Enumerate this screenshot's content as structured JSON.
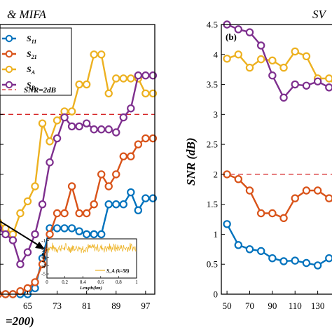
{
  "colors": {
    "s11": "#0072BD",
    "s21": "#D95319",
    "sA": "#EDB120",
    "sB": "#7E2F8E",
    "threshold": "#D62728",
    "axis": "#000000"
  },
  "chart_data": [
    {
      "type": "line",
      "panel": "left",
      "title": "& MIFA",
      "xlabel": "=200)",
      "ylabel": "",
      "x_ticks": [
        "65",
        "73",
        "81",
        "89",
        "97"
      ],
      "x": [
        57,
        59,
        61,
        63,
        65,
        67,
        69,
        71,
        73,
        75,
        77,
        79,
        81,
        83,
        85,
        87,
        89,
        91,
        93,
        95,
        97,
        99
      ],
      "xlim": [
        57.5,
        99.5
      ],
      "ylim": [
        0,
        4.5
      ],
      "grid": false,
      "legend_position": "top-left",
      "series": [
        {
          "name": "S11",
          "label_main": "S",
          "label_sub": "11",
          "color_key": "s11",
          "values": [
            0.0,
            0.0,
            0.0,
            0.0,
            0.0,
            0.1,
            0.6,
            1.1,
            1.1,
            1.1,
            1.1,
            1.05,
            1.0,
            1.0,
            1.0,
            1.5,
            1.5,
            1.5,
            1.7,
            1.4,
            1.6,
            1.6
          ]
        },
        {
          "name": "S21",
          "label_main": "S",
          "label_sub": "21",
          "color_key": "s21",
          "values": [
            0.0,
            0.0,
            0.0,
            0.05,
            0.1,
            0.2,
            0.5,
            1.0,
            1.35,
            1.35,
            1.8,
            1.35,
            1.35,
            1.5,
            2.0,
            1.8,
            2.0,
            2.3,
            2.3,
            2.5,
            2.6,
            2.6
          ]
        },
        {
          "name": "SA",
          "label_main": "S",
          "label_sub": "A",
          "color_key": "sA",
          "values": [
            1.2,
            1.1,
            1.0,
            1.35,
            1.55,
            1.8,
            2.85,
            2.55,
            2.9,
            3.05,
            3.05,
            3.5,
            3.5,
            4.0,
            4.0,
            3.35,
            3.6,
            3.6,
            3.6,
            3.6,
            3.35,
            3.35
          ]
        },
        {
          "name": "SB",
          "label_main": "S",
          "label_sub": "B",
          "color_key": "sB",
          "values": [
            1.1,
            1.0,
            0.9,
            0.5,
            0.7,
            1.0,
            1.5,
            2.2,
            2.6,
            2.95,
            2.8,
            2.8,
            2.85,
            2.75,
            2.75,
            2.75,
            2.7,
            2.95,
            3.1,
            3.65,
            3.65,
            3.65
          ]
        }
      ],
      "reference_line": {
        "y": 3.0,
        "label": "SNR=2dB",
        "color_key": "threshold"
      },
      "inset": {
        "ylabel": "S_A (dB)",
        "xlabel": "Length(km)",
        "y_ticks": [
          "-1",
          "-2",
          "-3",
          "-4",
          "-5"
        ],
        "x_ticks": [
          "0",
          "0.2",
          "0.4",
          "0.6",
          "0.8",
          "1"
        ],
        "legend": "S_A (k=58)",
        "xlim": [
          0,
          1
        ],
        "ylim": [
          -5.5,
          -0.8
        ],
        "mean": -1.9,
        "noise_amplitude": 0.45
      }
    },
    {
      "type": "line",
      "panel": "right",
      "title": "SV",
      "panel_label": "(b)",
      "ylabel": "SNR (dB)",
      "xlabel": "",
      "x_ticks": [
        "50",
        "70",
        "90",
        "110",
        "130",
        "1"
      ],
      "y_ticks": [
        "0",
        "0.5",
        "1",
        "1.5",
        "2",
        "2.5",
        "3",
        "3.5",
        "4",
        "4.5"
      ],
      "x": [
        50,
        60,
        70,
        80,
        90,
        100,
        110,
        120,
        130,
        140,
        150
      ],
      "xlim": [
        45,
        150
      ],
      "ylim": [
        0,
        4.5
      ],
      "grid": false,
      "series": [
        {
          "name": "S11",
          "color_key": "s11",
          "values": [
            1.17,
            0.82,
            0.75,
            0.72,
            0.6,
            0.55,
            0.56,
            0.52,
            0.48,
            0.6,
            0.68
          ]
        },
        {
          "name": "S21",
          "color_key": "s21",
          "values": [
            2.0,
            1.92,
            1.73,
            1.35,
            1.35,
            1.27,
            1.6,
            1.73,
            1.73,
            1.6,
            1.45
          ]
        },
        {
          "name": "SA",
          "color_key": "sA",
          "values": [
            3.93,
            4.0,
            3.78,
            3.92,
            3.9,
            3.78,
            4.05,
            3.97,
            3.6,
            3.6,
            3.4
          ]
        },
        {
          "name": "SB",
          "color_key": "sB",
          "values": [
            4.5,
            4.42,
            4.37,
            4.15,
            3.65,
            3.28,
            3.5,
            3.48,
            3.55,
            3.45,
            3.42
          ]
        }
      ],
      "reference_line": {
        "y": 2.0,
        "color_key": "threshold"
      }
    }
  ]
}
